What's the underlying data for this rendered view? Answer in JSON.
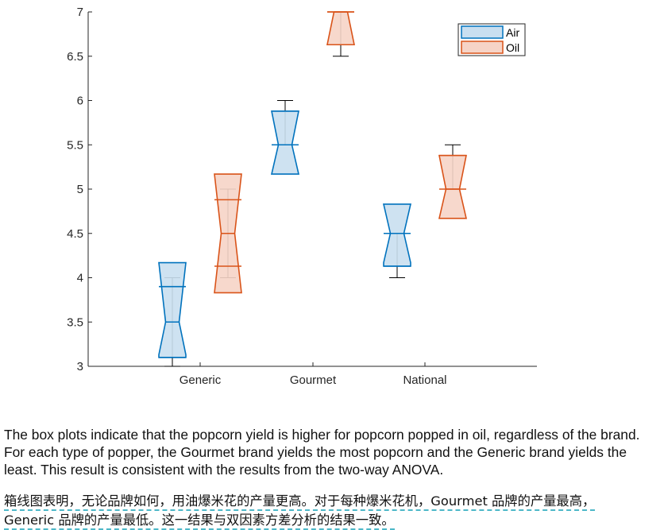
{
  "chart_data": {
    "type": "boxplot",
    "categories": [
      "Generic",
      "Gourmet",
      "National"
    ],
    "ylim": [
      3,
      7
    ],
    "yticks": [
      "3",
      "3.5",
      "4",
      "4.5",
      "5",
      "5.5",
      "6",
      "6.5",
      "7"
    ],
    "series": [
      {
        "name": "Air",
        "color": "#0072BD",
        "fill": "#c9dff0",
        "boxes": [
          {
            "category": "Generic",
            "min": 3.0,
            "q1": 3.1,
            "median": 3.5,
            "q3": 3.9,
            "max": 4.0,
            "notch_lo": 3.13,
            "notch_hi": 4.17
          },
          {
            "category": "Gourmet",
            "min": 5.5,
            "q1": 5.5,
            "median": 5.5,
            "q3": 5.88,
            "max": 6.0,
            "notch_lo": 5.17,
            "notch_hi": 5.88
          },
          {
            "category": "National",
            "min": 4.0,
            "q1": 4.13,
            "median": 4.5,
            "q3": 4.5,
            "max": 4.5,
            "notch_lo": 4.17,
            "notch_hi": 4.83
          }
        ]
      },
      {
        "name": "Oil",
        "color": "#D95319",
        "fill": "#f6d4c7",
        "boxes": [
          {
            "category": "Generic",
            "min": 4.0,
            "q1": 4.13,
            "median": 4.5,
            "q3": 4.88,
            "max": 5.0,
            "notch_lo": 3.83,
            "notch_hi": 5.17
          },
          {
            "category": "Gourmet",
            "min": 6.5,
            "q1": 6.63,
            "median": 7.0,
            "q3": 7.0,
            "max": 7.0,
            "notch_lo": 6.63,
            "notch_hi": 7.0
          },
          {
            "category": "National",
            "min": 5.0,
            "q1": 5.0,
            "median": 5.0,
            "q3": 5.38,
            "max": 5.5,
            "notch_lo": 4.67,
            "notch_hi": 5.38
          }
        ]
      }
    ],
    "legend": {
      "position": "top-right",
      "entries": [
        "Air",
        "Oil"
      ]
    }
  },
  "text": {
    "english": "The box plots indicate that the popcorn yield is higher for popcorn popped in oil, regardless of the brand. For each type of popper, the Gourmet brand yields the most popcorn and the Generic brand yields the least. This result is consistent with the results from the two-way ANOVA.",
    "chinese_line1": "箱线图表明，无论品牌如何，用油爆米花的产量更高。对于每种爆米花机，Gourmet 品牌的产量最高，",
    "chinese_line2": "Generic 品牌的产量最低。这一结果与双因素方差分析的结果一致。"
  }
}
